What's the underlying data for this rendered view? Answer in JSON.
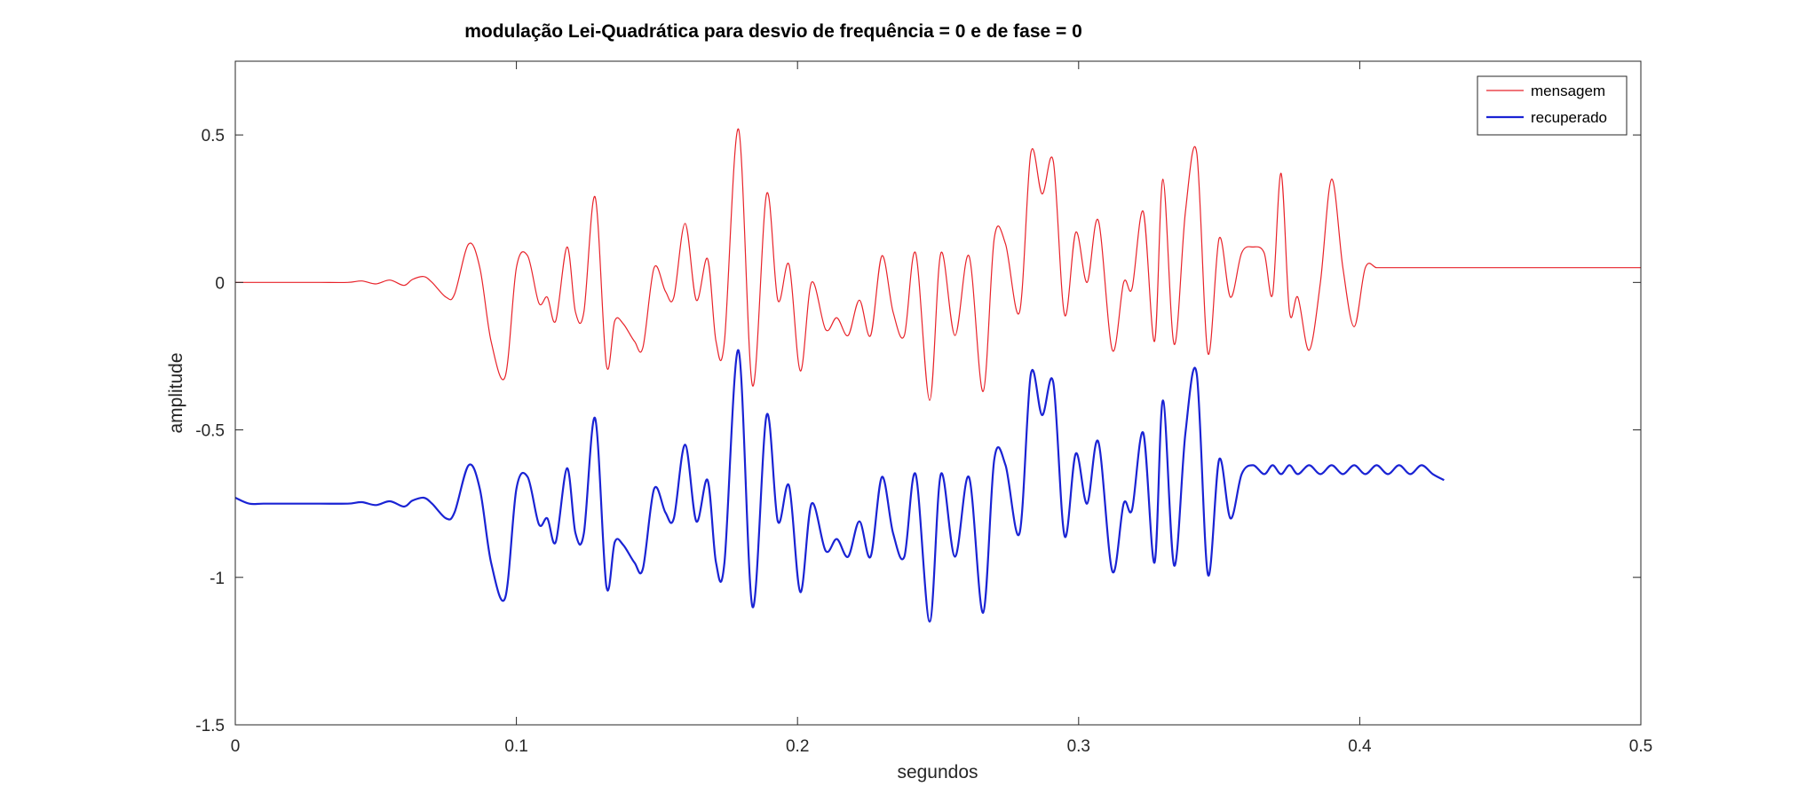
{
  "chart_data": {
    "type": "line",
    "title": "modulação Lei-Quadrática para desvio de frequência = 0 e de fase = 0",
    "xlabel": "segundos",
    "ylabel": "amplitude",
    "xlim": [
      0,
      0.5
    ],
    "ylim": [
      -1.5,
      0.75
    ],
    "xticks": [
      0,
      0.1,
      0.2,
      0.3,
      0.4,
      0.5
    ],
    "xtick_labels": [
      "0",
      "0.1",
      "0.2",
      "0.3",
      "0.4",
      "0.5"
    ],
    "yticks": [
      -1.5,
      -1,
      -0.5,
      0,
      0.5
    ],
    "ytick_labels": [
      "-1.5",
      "-1",
      "-0.5",
      "0",
      "0.5"
    ],
    "grid": false,
    "legend_position": "top-right",
    "series": [
      {
        "name": "mensagem",
        "color": "#e8232a",
        "x": [
          0.0,
          0.01,
          0.02,
          0.03,
          0.04,
          0.045,
          0.05,
          0.055,
          0.06,
          0.063,
          0.067,
          0.07,
          0.075,
          0.078,
          0.083,
          0.087,
          0.091,
          0.096,
          0.1,
          0.104,
          0.108,
          0.111,
          0.114,
          0.118,
          0.121,
          0.124,
          0.128,
          0.132,
          0.135,
          0.138,
          0.142,
          0.145,
          0.149,
          0.153,
          0.156,
          0.16,
          0.164,
          0.168,
          0.171,
          0.174,
          0.179,
          0.184,
          0.189,
          0.193,
          0.197,
          0.201,
          0.205,
          0.21,
          0.214,
          0.218,
          0.222,
          0.226,
          0.23,
          0.234,
          0.238,
          0.242,
          0.247,
          0.251,
          0.256,
          0.261,
          0.266,
          0.27,
          0.274,
          0.279,
          0.283,
          0.287,
          0.291,
          0.295,
          0.299,
          0.303,
          0.307,
          0.312,
          0.316,
          0.319,
          0.323,
          0.327,
          0.33,
          0.334,
          0.338,
          0.342,
          0.346,
          0.35,
          0.354,
          0.358,
          0.362,
          0.366,
          0.369,
          0.372,
          0.375,
          0.378,
          0.382,
          0.386,
          0.39,
          0.394,
          0.398,
          0.402,
          0.406,
          0.41,
          0.414,
          0.418,
          0.422,
          0.426,
          0.43,
          0.434,
          0.438,
          0.442,
          0.446,
          0.45,
          0.454,
          0.458,
          0.462,
          0.466,
          0.47,
          0.474,
          0.478,
          0.482,
          0.486,
          0.49,
          0.494,
          0.498,
          0.5
        ],
        "y": [
          0.0,
          0.0,
          0.0,
          0.0,
          0.0,
          0.005,
          -0.005,
          0.008,
          -0.01,
          0.01,
          0.02,
          0.0,
          -0.05,
          -0.04,
          0.13,
          0.05,
          -0.2,
          -0.32,
          0.05,
          0.09,
          -0.07,
          -0.05,
          -0.13,
          0.12,
          -0.1,
          -0.1,
          0.29,
          -0.28,
          -0.13,
          -0.14,
          -0.2,
          -0.22,
          0.05,
          -0.03,
          -0.05,
          0.2,
          -0.06,
          0.08,
          -0.2,
          -0.2,
          0.52,
          -0.35,
          0.3,
          -0.06,
          0.06,
          -0.3,
          0.0,
          -0.16,
          -0.12,
          -0.18,
          -0.06,
          -0.18,
          0.09,
          -0.1,
          -0.18,
          0.1,
          -0.4,
          0.1,
          -0.18,
          0.09,
          -0.37,
          0.15,
          0.13,
          -0.1,
          0.44,
          0.3,
          0.41,
          -0.11,
          0.17,
          0.0,
          0.21,
          -0.23,
          0.0,
          -0.02,
          0.24,
          -0.2,
          0.35,
          -0.21,
          0.24,
          0.44,
          -0.24,
          0.15,
          -0.05,
          0.1,
          0.12,
          0.1,
          -0.04,
          0.37,
          -0.1,
          -0.05,
          -0.23,
          0.0,
          0.35,
          0.05,
          -0.15,
          0.05,
          0.05,
          0.05,
          0.05,
          0.05,
          0.05,
          0.05,
          0.05,
          0.05,
          0.05,
          0.05,
          0.05,
          0.05,
          0.05,
          0.05,
          0.05,
          0.05,
          0.05,
          0.05,
          0.05,
          0.05,
          0.05,
          0.05,
          0.05,
          0.05,
          0.05
        ]
      },
      {
        "name": "recuperado",
        "color": "#1a23d4",
        "x": [
          0.0,
          0.005,
          0.01,
          0.02,
          0.03,
          0.04,
          0.045,
          0.05,
          0.055,
          0.06,
          0.063,
          0.067,
          0.07,
          0.075,
          0.078,
          0.083,
          0.087,
          0.091,
          0.096,
          0.1,
          0.104,
          0.108,
          0.111,
          0.114,
          0.118,
          0.121,
          0.124,
          0.128,
          0.132,
          0.135,
          0.138,
          0.142,
          0.145,
          0.149,
          0.153,
          0.156,
          0.16,
          0.164,
          0.168,
          0.171,
          0.174,
          0.179,
          0.184,
          0.189,
          0.193,
          0.197,
          0.201,
          0.205,
          0.21,
          0.214,
          0.218,
          0.222,
          0.226,
          0.23,
          0.234,
          0.238,
          0.242,
          0.247,
          0.251,
          0.256,
          0.261,
          0.266,
          0.27,
          0.274,
          0.279,
          0.283,
          0.287,
          0.291,
          0.295,
          0.299,
          0.303,
          0.307,
          0.312,
          0.316,
          0.319,
          0.323,
          0.327,
          0.33,
          0.334,
          0.338,
          0.342,
          0.346,
          0.35,
          0.354,
          0.358,
          0.362,
          0.366,
          0.369,
          0.372,
          0.375,
          0.378,
          0.382,
          0.386,
          0.39,
          0.394,
          0.398,
          0.402,
          0.406,
          0.41,
          0.414,
          0.418,
          0.422,
          0.426,
          0.43
        ],
        "y": [
          -0.73,
          -0.75,
          -0.75,
          -0.75,
          -0.75,
          -0.75,
          -0.745,
          -0.755,
          -0.742,
          -0.76,
          -0.74,
          -0.73,
          -0.75,
          -0.8,
          -0.78,
          -0.62,
          -0.7,
          -0.95,
          -1.07,
          -0.7,
          -0.66,
          -0.82,
          -0.8,
          -0.88,
          -0.63,
          -0.85,
          -0.85,
          -0.46,
          -1.03,
          -0.88,
          -0.89,
          -0.95,
          -0.97,
          -0.7,
          -0.78,
          -0.8,
          -0.55,
          -0.81,
          -0.67,
          -0.95,
          -0.95,
          -0.23,
          -1.1,
          -0.45,
          -0.81,
          -0.69,
          -1.05,
          -0.75,
          -0.91,
          -0.87,
          -0.93,
          -0.81,
          -0.93,
          -0.66,
          -0.85,
          -0.93,
          -0.65,
          -1.15,
          -0.65,
          -0.93,
          -0.66,
          -1.12,
          -0.6,
          -0.62,
          -0.85,
          -0.31,
          -0.45,
          -0.34,
          -0.86,
          -0.58,
          -0.75,
          -0.54,
          -0.98,
          -0.75,
          -0.77,
          -0.51,
          -0.95,
          -0.4,
          -0.96,
          -0.51,
          -0.31,
          -0.99,
          -0.6,
          -0.8,
          -0.65,
          -0.62,
          -0.65,
          -0.62,
          -0.65,
          -0.62,
          -0.65,
          -0.62,
          -0.65,
          -0.62,
          -0.65,
          -0.62,
          -0.65,
          -0.62,
          -0.65,
          -0.62,
          -0.65,
          -0.62,
          -0.65,
          -0.67
        ]
      }
    ]
  }
}
